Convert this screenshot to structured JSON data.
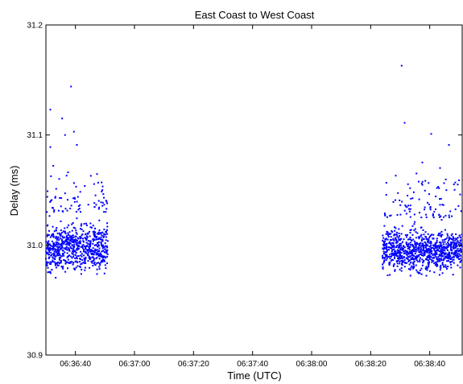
{
  "chart_data": {
    "type": "scatter",
    "title": "East Coast to West Coast",
    "xlabel": "Time (UTC)",
    "ylabel": "Delay (ms)",
    "xlim": [
      "06:36:30",
      "06:38:51"
    ],
    "ylim": [
      30.9,
      31.2
    ],
    "xticks": [
      "06:36:40",
      "06:37:00",
      "06:37:20",
      "06:37:40",
      "06:38:00",
      "06:38:20",
      "06:38:40"
    ],
    "yticks": [
      "30.9",
      "31.0",
      "31.1",
      "31.2"
    ],
    "grid": false,
    "marker_color": "#0000ff",
    "series": [
      {
        "time_range": [
          "06:36:30",
          "06:36:51"
        ],
        "points": [
          {
            "x": "06:36:31",
            "y": 31.123
          },
          {
            "x": "06:36:31",
            "y": 31.089
          },
          {
            "x": "06:36:35",
            "y": 31.115
          },
          {
            "x": "06:36:36",
            "y": 31.1
          },
          {
            "x": "06:36:38",
            "y": 31.144
          },
          {
            "x": "06:36:39",
            "y": 31.103
          },
          {
            "x": "06:36:40",
            "y": 31.091
          },
          {
            "x": "06:36:32",
            "y": 31.072
          },
          {
            "x": "06:36:34",
            "y": 31.06
          },
          {
            "x": "06:36:37",
            "y": 31.066
          },
          {
            "x": "06:36:33",
            "y": 31.051
          },
          {
            "x": "06:36:36",
            "y": 31.047
          }
        ],
        "dense_band": {
          "min": 30.965,
          "max": 31.03,
          "count": 700,
          "sparse_max": 31.065,
          "sparse_count": 70
        }
      },
      {
        "time_range": [
          "06:38:24",
          "06:38:51"
        ],
        "points": [
          {
            "x": "06:38:30",
            "y": 31.163
          },
          {
            "x": "06:38:31",
            "y": 31.111
          },
          {
            "x": "06:38:40",
            "y": 31.101
          },
          {
            "x": "06:38:46",
            "y": 31.091
          },
          {
            "x": "06:38:37",
            "y": 31.075
          },
          {
            "x": "06:38:43",
            "y": 31.07
          },
          {
            "x": "06:38:35",
            "y": 31.065
          },
          {
            "x": "06:38:28",
            "y": 31.063
          },
          {
            "x": "06:38:49",
            "y": 31.055
          }
        ],
        "dense_band": {
          "min": 30.965,
          "max": 31.025,
          "count": 900,
          "sparse_max": 31.06,
          "sparse_count": 90
        }
      }
    ]
  }
}
